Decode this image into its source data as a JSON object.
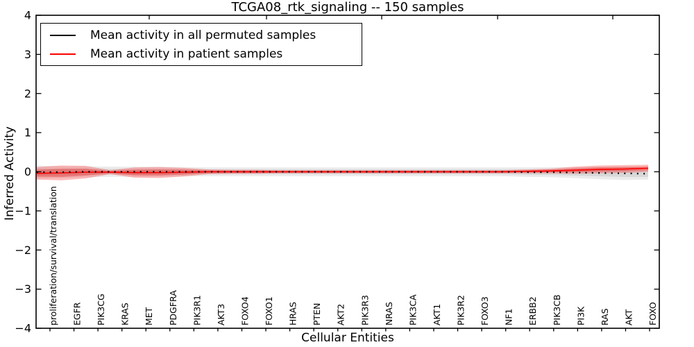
{
  "figure": {
    "title": "TCGA08_rtk_signaling -- 150 samples",
    "xlabel": "Cellular Entities",
    "ylabel": "Inferred Activity"
  },
  "legend": {
    "entries": [
      {
        "label": "Mean activity in all permuted samples",
        "color": "#000000",
        "swatch_style": "border-top:2px solid #000000"
      },
      {
        "label": "Mean activity in patient samples",
        "color": "#ff0000",
        "swatch_style": "border-top:2px solid #ff0000"
      }
    ]
  },
  "chart_data": {
    "type": "line",
    "title": "TCGA08_rtk_signaling -- 150 samples",
    "xlabel": "Cellular Entities",
    "ylabel": "Inferred Activity",
    "ylim": [
      -4,
      4
    ],
    "yticks": [
      4,
      3,
      2,
      1,
      0,
      -1,
      -2,
      -3,
      -4
    ],
    "ytick_labels": [
      "4",
      "3",
      "2",
      "1",
      "0",
      "−1",
      "−2",
      "−3",
      "−4"
    ],
    "grid": false,
    "legend_position": "upper left",
    "categories": [
      "proliferation/survival/translation",
      "EGFR",
      "PIK3CG",
      "KRAS",
      "MET",
      "PDGFRA",
      "PIK3R1",
      "AKT3",
      "FOXO4",
      "FOXO1",
      "HRAS",
      "PTEN",
      "AKT2",
      "PIK3R3",
      "NRAS",
      "PIK3CA",
      "AKT1",
      "PIK3R2",
      "FOXO3",
      "NF1",
      "ERBB2",
      "PIK3CB",
      "PI3K",
      "RAS",
      "AKT",
      "FOXO"
    ],
    "series": [
      {
        "name": "Mean activity in all permuted samples",
        "color": "#000000",
        "line_style": "dotted",
        "band_color": "rgba(0,0,0,0.08)",
        "values": [
          -0.01,
          -0.01,
          0,
          0,
          0,
          0,
          0,
          0,
          0,
          0,
          0,
          0,
          0,
          0,
          0,
          0,
          0,
          0,
          0,
          0,
          -0.01,
          -0.01,
          -0.02,
          -0.03,
          -0.04,
          -0.05
        ],
        "std": [
          0.17,
          0.15,
          0.14,
          0.13,
          0.13,
          0.13,
          0.12,
          0.11,
          0.11,
          0.11,
          0.11,
          0.11,
          0.11,
          0.11,
          0.11,
          0.11,
          0.11,
          0.11,
          0.11,
          0.11,
          0.12,
          0.13,
          0.14,
          0.16,
          0.17,
          0.15
        ]
      },
      {
        "name": "Mean activity in patient samples",
        "color": "#ff0000",
        "line_style": "solid",
        "band_color": "rgba(255,30,30,0.30)",
        "band_color_inner": "rgba(220,0,0,0.28)",
        "values": [
          -0.04,
          -0.03,
          -0.01,
          -0.01,
          -0.02,
          -0.02,
          -0.01,
          0,
          0,
          0,
          0,
          0,
          0,
          0,
          0,
          0,
          0,
          0,
          0,
          0,
          0.01,
          0.02,
          0.04,
          0.06,
          0.07,
          0.09
        ],
        "std": [
          0.16,
          0.19,
          0.16,
          0.05,
          0.13,
          0.14,
          0.11,
          0.06,
          0.05,
          0.05,
          0.04,
          0.04,
          0.04,
          0.04,
          0.04,
          0.04,
          0.04,
          0.04,
          0.04,
          0.04,
          0.05,
          0.06,
          0.09,
          0.1,
          0.1,
          0.09
        ]
      }
    ]
  }
}
